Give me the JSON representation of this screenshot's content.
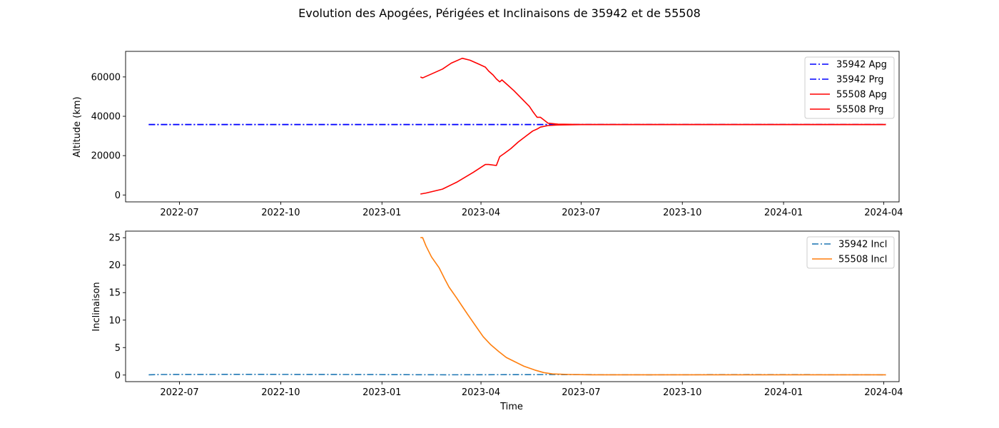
{
  "chart_data": {
    "title": "Evolution des Apogées, Périgées et Inclinaisons de 35942 et de 55508",
    "xlabel": "Time",
    "x_ticks": [
      "2022-07",
      "2022-10",
      "2023-01",
      "2023-04",
      "2023-07",
      "2023-10",
      "2024-01",
      "2024-04"
    ],
    "xlim": [
      "2022-05-13",
      "2024-04-15"
    ],
    "subplots": [
      {
        "type": "line",
        "ylabel": "Altitude (km)",
        "ylim": [
          -3500,
          73000
        ],
        "y_ticks": [
          0,
          20000,
          40000,
          60000
        ],
        "legend_position": "top-right",
        "grid": false,
        "series": [
          {
            "name": "35942 Apg",
            "color": "#0000ff",
            "style": "dashdot",
            "x": [
              "2022-06-03",
              "2023-06-01",
              "2024-04-03"
            ],
            "y": [
              35800,
              35800,
              35800
            ]
          },
          {
            "name": "35942 Prg",
            "color": "#0000ff",
            "style": "dashdot",
            "x": [
              "2022-06-03",
              "2023-06-01",
              "2024-04-03"
            ],
            "y": [
              35780,
              35780,
              35780
            ]
          },
          {
            "name": "55508 Apg",
            "color": "#ff0000",
            "style": "solid",
            "x": [
              "2023-02-05",
              "2023-02-07",
              "2023-02-15",
              "2023-02-25",
              "2023-03-05",
              "2023-03-15",
              "2023-03-22",
              "2023-03-30",
              "2023-04-05",
              "2023-04-08",
              "2023-04-12",
              "2023-04-15",
              "2023-04-18",
              "2023-04-20",
              "2023-04-25",
              "2023-05-01",
              "2023-05-08",
              "2023-05-15",
              "2023-05-18",
              "2023-05-20",
              "2023-05-22",
              "2023-05-25",
              "2023-06-01",
              "2023-06-10",
              "2023-07-01",
              "2024-04-03"
            ],
            "y": [
              60000,
              59500,
              61500,
              64000,
              67000,
              69500,
              68500,
              66500,
              65000,
              63000,
              61000,
              59000,
              57500,
              58500,
              56000,
              53000,
              49000,
              45000,
              42500,
              41000,
              39500,
              39500,
              36500,
              36000,
              35850,
              35850
            ]
          },
          {
            "name": "55508 Prg",
            "color": "#ff0000",
            "style": "solid",
            "x": [
              "2023-02-05",
              "2023-02-10",
              "2023-02-25",
              "2023-03-10",
              "2023-03-25",
              "2023-04-05",
              "2023-04-08",
              "2023-04-15",
              "2023-04-18",
              "2023-04-22",
              "2023-04-28",
              "2023-05-05",
              "2023-05-12",
              "2023-05-18",
              "2023-05-22",
              "2023-05-25",
              "2023-06-01",
              "2023-06-10",
              "2023-07-01",
              "2024-04-03"
            ],
            "y": [
              500,
              1000,
              3000,
              6500,
              11500,
              15500,
              15500,
              15000,
              19500,
              21000,
              23500,
              27000,
              30000,
              32500,
              33500,
              34500,
              35300,
              35600,
              35750,
              35750
            ]
          }
        ]
      },
      {
        "type": "line",
        "ylabel": "Inclinaison",
        "ylim": [
          -1.2,
          26.2
        ],
        "y_ticks": [
          0,
          5,
          10,
          15,
          20,
          25
        ],
        "legend_position": "top-right",
        "grid": false,
        "series": [
          {
            "name": "35942 Incl",
            "color": "#1f77b4",
            "style": "dashdot",
            "x": [
              "2022-06-03",
              "2022-06-15",
              "2022-09-01",
              "2022-12-01",
              "2023-03-01",
              "2023-06-01",
              "2023-09-01",
              "2023-12-01",
              "2024-04-03"
            ],
            "y": [
              0.05,
              0.1,
              0.12,
              0.1,
              0.05,
              0.08,
              0.05,
              0.08,
              0.05
            ]
          },
          {
            "name": "55508 Incl",
            "color": "#ff7f0e",
            "style": "solid",
            "x": [
              "2023-02-05",
              "2023-02-07",
              "2023-02-10",
              "2023-02-15",
              "2023-02-22",
              "2023-02-27",
              "2023-03-03",
              "2023-03-10",
              "2023-03-15",
              "2023-03-20",
              "2023-03-27",
              "2023-04-03",
              "2023-04-10",
              "2023-04-17",
              "2023-04-24",
              "2023-05-01",
              "2023-05-10",
              "2023-05-20",
              "2023-05-28",
              "2023-06-05",
              "2023-06-20",
              "2023-07-10",
              "2024-04-03"
            ],
            "y": [
              25,
              25,
              23.5,
              21.5,
              19.5,
              17.5,
              16,
              14,
              12.5,
              11,
              9,
              7,
              5.5,
              4.3,
              3.2,
              2.5,
              1.6,
              0.9,
              0.45,
              0.2,
              0.1,
              0.05,
              0.05
            ]
          }
        ]
      }
    ]
  }
}
